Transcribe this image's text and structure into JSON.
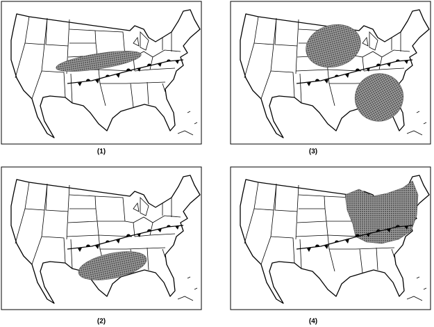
{
  "panels": [
    {
      "label": "(1)"
    },
    {
      "label": "(2)"
    },
    {
      "label": "(3)"
    },
    {
      "label": "(4)"
    }
  ]
}
